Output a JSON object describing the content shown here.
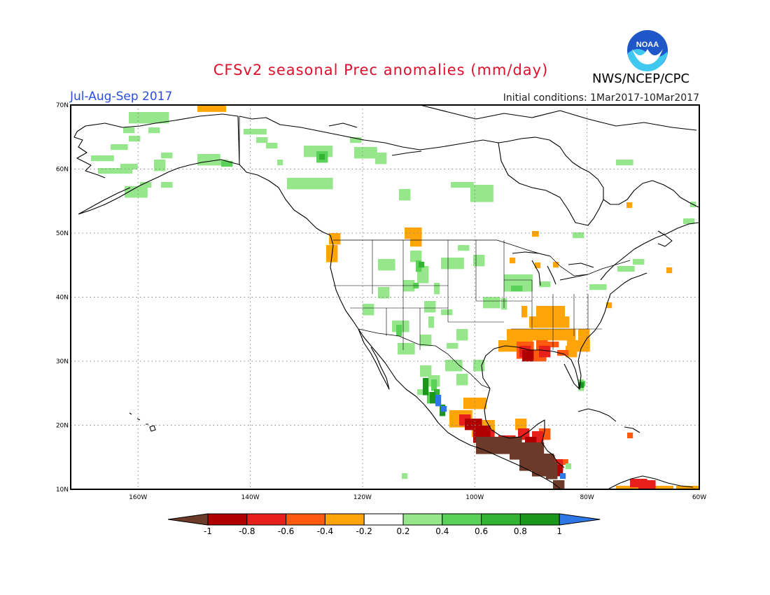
{
  "title": "CFSv2 seasonal Prec anomalies (mm/day)",
  "season": "Jul-Aug-Sep 2017",
  "initial_conditions": "Initial conditions: 1Mar2017-10Mar2017",
  "agency": "NWS/NCEP/CPC",
  "logo_text": "NOAA",
  "map": {
    "lon_range": [
      -172,
      -60
    ],
    "lat_range": [
      10,
      70
    ],
    "lon_ticks": [
      "160W",
      "140W",
      "120W",
      "100W",
      "80W",
      "60W"
    ],
    "lat_ticks": [
      "10N",
      "20N",
      "30N",
      "40N",
      "50N",
      "60N",
      "70N"
    ]
  },
  "colorbar": {
    "labels": [
      "-1",
      "-0.8",
      "-0.6",
      "-0.4",
      "-0.2",
      "0.2",
      "0.4",
      "0.6",
      "0.8",
      "1"
    ],
    "colors": {
      "below_min": "#6b3a28",
      "m08": "#b00000",
      "m06": "#e8201c",
      "m04": "#ff5a10",
      "m02": "#ffa50a",
      "neutral": "#ffffff",
      "p02": "#96e68c",
      "p04": "#5ad25a",
      "p06": "#32b432",
      "p08": "#1a961a",
      "above_max": "#2d78e6"
    }
  }
}
